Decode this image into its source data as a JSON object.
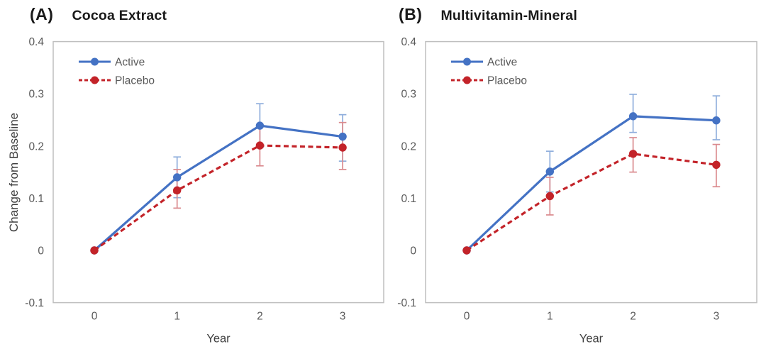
{
  "figure": {
    "background": "#ffffff",
    "panel_count": 2
  },
  "colors": {
    "active_blue": "#4472C4",
    "active_errorbar_blue": "#8FAEDC",
    "placebo_red": "#C32329",
    "placebo_errorbar_red": "#DA8A8E",
    "plot_border_gray": "#BFBFBF",
    "tick_label_gray": "#595959",
    "axis_label_gray": "#3F3F3F",
    "title_black": "#1A1A1A"
  },
  "chart_data": [
    {
      "type": "line",
      "panel_label": "(A)",
      "title": "Cocoa Extract",
      "xlabel": "Year",
      "ylabel": "Change from Baseline",
      "x": [
        0,
        1,
        2,
        3
      ],
      "x_tick_labels": [
        "0",
        "1",
        "2",
        "3"
      ],
      "y_tick_values": [
        0.4,
        0.3,
        0.2,
        0.1,
        0,
        -0.1
      ],
      "y_tick_labels": [
        "0.4",
        "0.3",
        "0.2",
        "0.1",
        "0",
        "-0.1"
      ],
      "ylim": [
        -0.1,
        0.4
      ],
      "grid": false,
      "legend_position": "top-left",
      "series": [
        {
          "name": "Active",
          "color": "#4472C4",
          "errbar_color": "#8FAEDC",
          "line_style": "solid",
          "marker": "circle",
          "values": [
            0,
            0.14,
            0.239,
            0.218
          ],
          "err_lo": [
            null,
            0.101,
            0.197,
            0.171
          ],
          "err_hi": [
            null,
            0.179,
            0.281,
            0.26
          ]
        },
        {
          "name": "Placebo",
          "color": "#C32329",
          "errbar_color": "#DA8A8E",
          "line_style": "dashed",
          "marker": "circle",
          "values": [
            0,
            0.115,
            0.201,
            0.197
          ],
          "err_lo": [
            null,
            0.081,
            0.162,
            0.155
          ],
          "err_hi": [
            null,
            0.155,
            0.24,
            0.245
          ]
        }
      ]
    },
    {
      "type": "line",
      "panel_label": "(B)",
      "title": "Multivitamin-Mineral",
      "xlabel": "Year",
      "ylabel": "",
      "x": [
        0,
        1,
        2,
        3
      ],
      "x_tick_labels": [
        "0",
        "1",
        "2",
        "3"
      ],
      "y_tick_values": [
        0.4,
        0.3,
        0.2,
        0.1,
        0,
        -0.1
      ],
      "y_tick_labels": [
        "0.4",
        "0.3",
        "0.2",
        "0.1",
        "0",
        "-0.1"
      ],
      "ylim": [
        -0.1,
        0.4
      ],
      "grid": false,
      "legend_position": "top-left",
      "series": [
        {
          "name": "Active",
          "color": "#4472C4",
          "errbar_color": "#8FAEDC",
          "line_style": "solid",
          "marker": "circle",
          "values": [
            0,
            0.151,
            0.257,
            0.249
          ],
          "err_lo": [
            null,
            0.112,
            0.226,
            0.212
          ],
          "err_hi": [
            null,
            0.19,
            0.299,
            0.296
          ]
        },
        {
          "name": "Placebo",
          "color": "#C32329",
          "errbar_color": "#DA8A8E",
          "line_style": "dashed",
          "marker": "circle",
          "values": [
            0,
            0.104,
            0.185,
            0.164
          ],
          "err_lo": [
            null,
            0.068,
            0.15,
            0.122
          ],
          "err_hi": [
            null,
            0.14,
            0.216,
            0.203
          ]
        }
      ]
    }
  ]
}
